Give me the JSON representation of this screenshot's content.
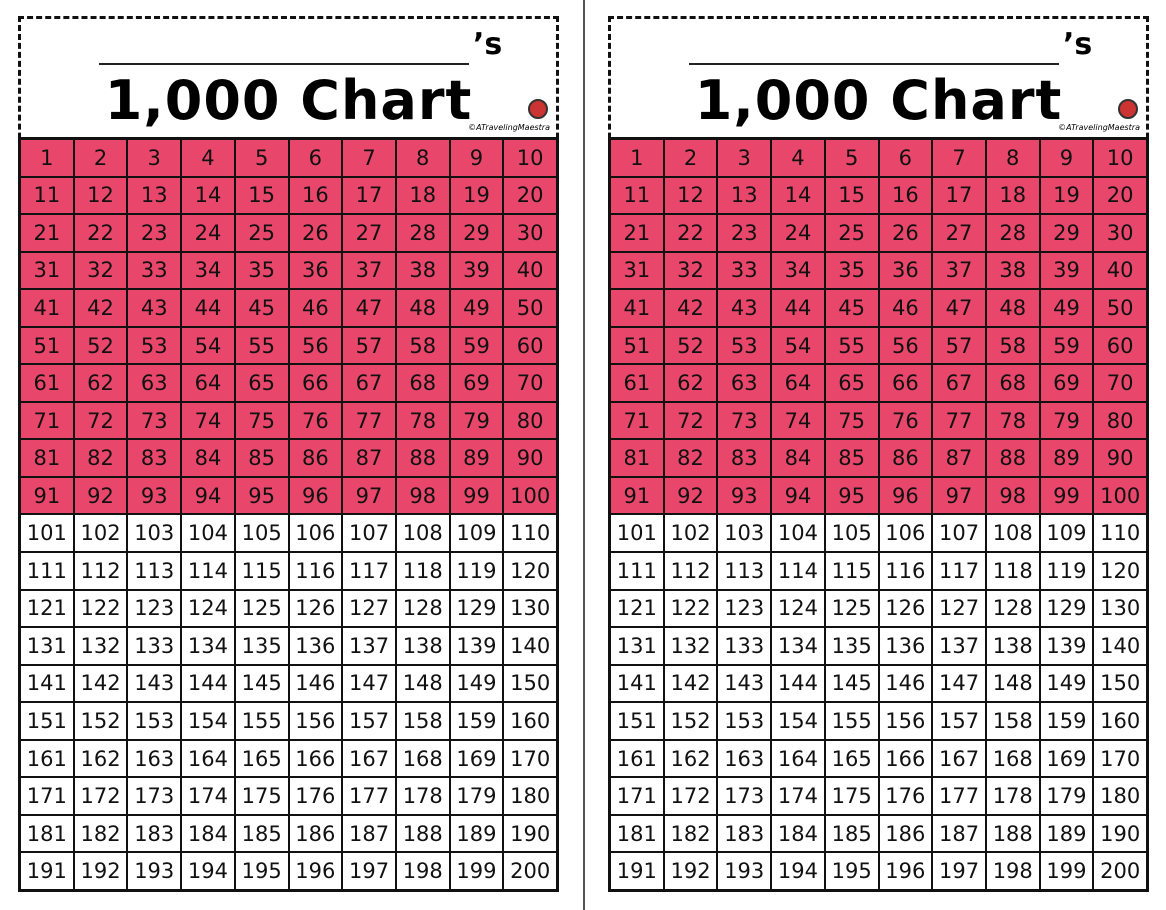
{
  "panels": [
    {
      "owner_suffix": "’s",
      "title": "1,000 Chart",
      "credit": "©ATravelingMaestra",
      "shaded_color": "#e8476b",
      "grid": {
        "shaded": [
          [
            1,
            2,
            3,
            4,
            5,
            6,
            7,
            8,
            9,
            10
          ],
          [
            11,
            12,
            13,
            14,
            15,
            16,
            17,
            18,
            19,
            20
          ],
          [
            21,
            22,
            23,
            24,
            25,
            26,
            27,
            28,
            29,
            30
          ],
          [
            31,
            32,
            33,
            34,
            35,
            36,
            37,
            38,
            39,
            40
          ],
          [
            41,
            42,
            43,
            44,
            45,
            46,
            47,
            48,
            49,
            50
          ],
          [
            51,
            52,
            53,
            54,
            55,
            56,
            57,
            58,
            59,
            60
          ],
          [
            61,
            62,
            63,
            64,
            65,
            66,
            67,
            68,
            69,
            70
          ],
          [
            71,
            72,
            73,
            74,
            75,
            76,
            77,
            78,
            79,
            80
          ],
          [
            81,
            82,
            83,
            84,
            85,
            86,
            87,
            88,
            89,
            90
          ],
          [
            91,
            92,
            93,
            94,
            95,
            96,
            97,
            98,
            99,
            100
          ]
        ],
        "plain": [
          [
            101,
            102,
            103,
            104,
            105,
            106,
            107,
            108,
            109,
            110
          ],
          [
            111,
            112,
            113,
            114,
            115,
            116,
            117,
            118,
            119,
            120
          ],
          [
            121,
            122,
            123,
            124,
            125,
            126,
            127,
            128,
            129,
            130
          ],
          [
            131,
            132,
            133,
            134,
            135,
            136,
            137,
            138,
            139,
            140
          ],
          [
            141,
            142,
            143,
            144,
            145,
            146,
            147,
            148,
            149,
            150
          ],
          [
            151,
            152,
            153,
            154,
            155,
            156,
            157,
            158,
            159,
            160
          ],
          [
            161,
            162,
            163,
            164,
            165,
            166,
            167,
            168,
            169,
            170
          ],
          [
            171,
            172,
            173,
            174,
            175,
            176,
            177,
            178,
            179,
            180
          ],
          [
            181,
            182,
            183,
            184,
            185,
            186,
            187,
            188,
            189,
            190
          ],
          [
            191,
            192,
            193,
            194,
            195,
            196,
            197,
            198,
            199,
            200
          ]
        ]
      }
    },
    {
      "owner_suffix": "’s",
      "title": "1,000 Chart",
      "credit": "©ATravelingMaestra",
      "shaded_color": "#e8476b",
      "grid": {
        "shaded": [
          [
            1,
            2,
            3,
            4,
            5,
            6,
            7,
            8,
            9,
            10
          ],
          [
            11,
            12,
            13,
            14,
            15,
            16,
            17,
            18,
            19,
            20
          ],
          [
            21,
            22,
            23,
            24,
            25,
            26,
            27,
            28,
            29,
            30
          ],
          [
            31,
            32,
            33,
            34,
            35,
            36,
            37,
            38,
            39,
            40
          ],
          [
            41,
            42,
            43,
            44,
            45,
            46,
            47,
            48,
            49,
            50
          ],
          [
            51,
            52,
            53,
            54,
            55,
            56,
            57,
            58,
            59,
            60
          ],
          [
            61,
            62,
            63,
            64,
            65,
            66,
            67,
            68,
            69,
            70
          ],
          [
            71,
            72,
            73,
            74,
            75,
            76,
            77,
            78,
            79,
            80
          ],
          [
            81,
            82,
            83,
            84,
            85,
            86,
            87,
            88,
            89,
            90
          ],
          [
            91,
            92,
            93,
            94,
            95,
            96,
            97,
            98,
            99,
            100
          ]
        ],
        "plain": [
          [
            101,
            102,
            103,
            104,
            105,
            106,
            107,
            108,
            109,
            110
          ],
          [
            111,
            112,
            113,
            114,
            115,
            116,
            117,
            118,
            119,
            120
          ],
          [
            121,
            122,
            123,
            124,
            125,
            126,
            127,
            128,
            129,
            130
          ],
          [
            131,
            132,
            133,
            134,
            135,
            136,
            137,
            138,
            139,
            140
          ],
          [
            141,
            142,
            143,
            144,
            145,
            146,
            147,
            148,
            149,
            150
          ],
          [
            151,
            152,
            153,
            154,
            155,
            156,
            157,
            158,
            159,
            160
          ],
          [
            161,
            162,
            163,
            164,
            165,
            166,
            167,
            168,
            169,
            170
          ],
          [
            171,
            172,
            173,
            174,
            175,
            176,
            177,
            178,
            179,
            180
          ],
          [
            181,
            182,
            183,
            184,
            185,
            186,
            187,
            188,
            189,
            190
          ],
          [
            191,
            192,
            193,
            194,
            195,
            196,
            197,
            198,
            199,
            200
          ]
        ]
      }
    }
  ]
}
